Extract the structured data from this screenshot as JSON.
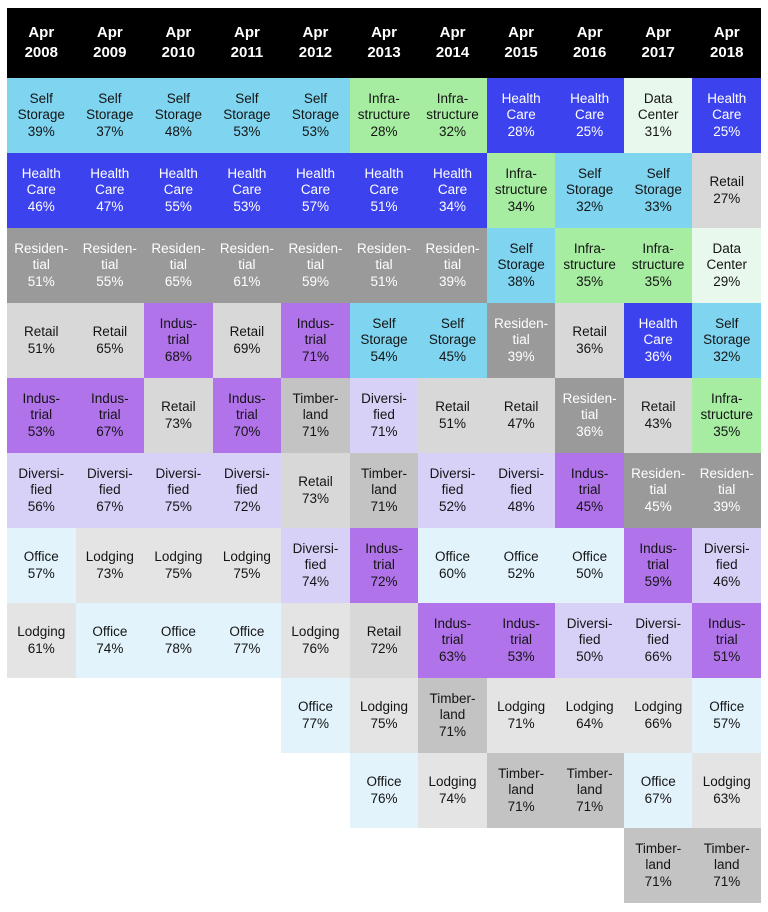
{
  "chart_data": {
    "type": "heatmap",
    "title": "",
    "description_visible": false,
    "legend_position": "none",
    "column_labels": [
      "Apr 2008",
      "Apr 2009",
      "Apr 2010",
      "Apr 2011",
      "Apr 2012",
      "Apr 2013",
      "Apr 2014",
      "Apr 2015",
      "Apr 2016",
      "Apr 2017",
      "Apr 2018"
    ],
    "columns": [
      {
        "month": "Apr",
        "year": "2008",
        "entries": [
          {
            "sector": "Self Storage",
            "value": "39%"
          },
          {
            "sector": "Health Care",
            "value": "46%"
          },
          {
            "sector": "Residential",
            "value": "51%"
          },
          {
            "sector": "Retail",
            "value": "51%"
          },
          {
            "sector": "Industrial",
            "value": "53%"
          },
          {
            "sector": "Diversified",
            "value": "56%"
          },
          {
            "sector": "Office",
            "value": "57%"
          },
          {
            "sector": "Lodging",
            "value": "61%"
          }
        ]
      },
      {
        "month": "Apr",
        "year": "2009",
        "entries": [
          {
            "sector": "Self Storage",
            "value": "37%"
          },
          {
            "sector": "Health Care",
            "value": "47%"
          },
          {
            "sector": "Residential",
            "value": "55%"
          },
          {
            "sector": "Retail",
            "value": "65%"
          },
          {
            "sector": "Industrial",
            "value": "67%"
          },
          {
            "sector": "Diversified",
            "value": "67%"
          },
          {
            "sector": "Lodging",
            "value": "73%"
          },
          {
            "sector": "Office",
            "value": "74%"
          }
        ]
      },
      {
        "month": "Apr",
        "year": "2010",
        "entries": [
          {
            "sector": "Self Storage",
            "value": "48%"
          },
          {
            "sector": "Health Care",
            "value": "55%"
          },
          {
            "sector": "Residential",
            "value": "65%"
          },
          {
            "sector": "Industrial",
            "value": "68%"
          },
          {
            "sector": "Retail",
            "value": "73%"
          },
          {
            "sector": "Diversified",
            "value": "75%"
          },
          {
            "sector": "Lodging",
            "value": "75%"
          },
          {
            "sector": "Office",
            "value": "78%"
          }
        ]
      },
      {
        "month": "Apr",
        "year": "2011",
        "entries": [
          {
            "sector": "Self Storage",
            "value": "53%"
          },
          {
            "sector": "Health Care",
            "value": "53%"
          },
          {
            "sector": "Residential",
            "value": "61%"
          },
          {
            "sector": "Retail",
            "value": "69%"
          },
          {
            "sector": "Industrial",
            "value": "70%"
          },
          {
            "sector": "Diversified",
            "value": "72%"
          },
          {
            "sector": "Lodging",
            "value": "75%"
          },
          {
            "sector": "Office",
            "value": "77%"
          }
        ]
      },
      {
        "month": "Apr",
        "year": "2012",
        "entries": [
          {
            "sector": "Self Storage",
            "value": "53%"
          },
          {
            "sector": "Health Care",
            "value": "57%"
          },
          {
            "sector": "Residential",
            "value": "59%"
          },
          {
            "sector": "Industrial",
            "value": "71%"
          },
          {
            "sector": "Timberland",
            "value": "71%"
          },
          {
            "sector": "Retail",
            "value": "73%"
          },
          {
            "sector": "Diversified",
            "value": "74%"
          },
          {
            "sector": "Lodging",
            "value": "76%"
          },
          {
            "sector": "Office",
            "value": "77%"
          }
        ]
      },
      {
        "month": "Apr",
        "year": "2013",
        "entries": [
          {
            "sector": "Infrastructure",
            "value": "28%"
          },
          {
            "sector": "Health Care",
            "value": "51%"
          },
          {
            "sector": "Residential",
            "value": "51%"
          },
          {
            "sector": "Self Storage",
            "value": "54%"
          },
          {
            "sector": "Diversified",
            "value": "71%"
          },
          {
            "sector": "Timberland",
            "value": "71%"
          },
          {
            "sector": "Industrial",
            "value": "72%"
          },
          {
            "sector": "Retail",
            "value": "72%"
          },
          {
            "sector": "Lodging",
            "value": "75%"
          },
          {
            "sector": "Office",
            "value": "76%"
          }
        ]
      },
      {
        "month": "Apr",
        "year": "2014",
        "entries": [
          {
            "sector": "Infrastructure",
            "value": "32%"
          },
          {
            "sector": "Health Care",
            "value": "34%"
          },
          {
            "sector": "Residential",
            "value": "39%"
          },
          {
            "sector": "Self Storage",
            "value": "45%"
          },
          {
            "sector": "Retail",
            "value": "51%"
          },
          {
            "sector": "Diversified",
            "value": "52%"
          },
          {
            "sector": "Office",
            "value": "60%"
          },
          {
            "sector": "Industrial",
            "value": "63%"
          },
          {
            "sector": "Timberland",
            "value": "71%"
          },
          {
            "sector": "Lodging",
            "value": "74%"
          }
        ]
      },
      {
        "month": "Apr",
        "year": "2015",
        "entries": [
          {
            "sector": "Health Care",
            "value": "28%"
          },
          {
            "sector": "Infrastructure",
            "value": "34%"
          },
          {
            "sector": "Self Storage",
            "value": "38%"
          },
          {
            "sector": "Residential",
            "value": "39%"
          },
          {
            "sector": "Retail",
            "value": "47%"
          },
          {
            "sector": "Diversified",
            "value": "48%"
          },
          {
            "sector": "Office",
            "value": "52%"
          },
          {
            "sector": "Industrial",
            "value": "53%"
          },
          {
            "sector": "Lodging",
            "value": "71%"
          },
          {
            "sector": "Timberland",
            "value": "71%"
          }
        ]
      },
      {
        "month": "Apr",
        "year": "2016",
        "entries": [
          {
            "sector": "Health Care",
            "value": "25%"
          },
          {
            "sector": "Self Storage",
            "value": "32%"
          },
          {
            "sector": "Infrastructure",
            "value": "35%"
          },
          {
            "sector": "Retail",
            "value": "36%"
          },
          {
            "sector": "Residential",
            "value": "36%"
          },
          {
            "sector": "Industrial",
            "value": "45%"
          },
          {
            "sector": "Office",
            "value": "50%"
          },
          {
            "sector": "Diversified",
            "value": "50%"
          },
          {
            "sector": "Lodging",
            "value": "64%"
          },
          {
            "sector": "Timberland",
            "value": "71%"
          }
        ]
      },
      {
        "month": "Apr",
        "year": "2017",
        "entries": [
          {
            "sector": "Data Center",
            "value": "31%"
          },
          {
            "sector": "Self Storage",
            "value": "33%"
          },
          {
            "sector": "Infrastructure",
            "value": "35%"
          },
          {
            "sector": "Health Care",
            "value": "36%"
          },
          {
            "sector": "Retail",
            "value": "43%"
          },
          {
            "sector": "Residential",
            "value": "45%"
          },
          {
            "sector": "Industrial",
            "value": "59%"
          },
          {
            "sector": "Diversified",
            "value": "66%"
          },
          {
            "sector": "Lodging",
            "value": "66%"
          },
          {
            "sector": "Office",
            "value": "67%"
          },
          {
            "sector": "Timberland",
            "value": "71%"
          }
        ]
      },
      {
        "month": "Apr",
        "year": "2018",
        "entries": [
          {
            "sector": "Health Care",
            "value": "25%"
          },
          {
            "sector": "Retail",
            "value": "27%"
          },
          {
            "sector": "Data Center",
            "value": "29%"
          },
          {
            "sector": "Self Storage",
            "value": "32%"
          },
          {
            "sector": "Infrastructure",
            "value": "35%"
          },
          {
            "sector": "Residential",
            "value": "39%"
          },
          {
            "sector": "Diversified",
            "value": "46%"
          },
          {
            "sector": "Industrial",
            "value": "51%"
          },
          {
            "sector": "Office",
            "value": "57%"
          },
          {
            "sector": "Lodging",
            "value": "63%"
          },
          {
            "sector": "Timberland",
            "value": "71%"
          }
        ]
      }
    ]
  },
  "sectors": {
    "Self Storage": {
      "display": "Self\nStorage",
      "bg": "#7fd4f0",
      "fg": "#141414"
    },
    "Health Care": {
      "display": "Health\nCare",
      "bg": "#3b42ee",
      "fg": "#ffffff"
    },
    "Residential": {
      "display": "Residen-\ntial",
      "bg": "#9a9a9a",
      "fg": "#ffffff"
    },
    "Retail": {
      "display": "Retail",
      "bg": "#d8d8d8",
      "fg": "#141414"
    },
    "Industrial": {
      "display": "Indus-\ntrial",
      "bg": "#b173e9",
      "fg": "#141414"
    },
    "Diversified": {
      "display": "Diversi-\nfied",
      "bg": "#d8d1f7",
      "fg": "#141414"
    },
    "Office": {
      "display": "Office",
      "bg": "#e2f3fc",
      "fg": "#141414"
    },
    "Lodging": {
      "display": "Lodging",
      "bg": "#e4e4e4",
      "fg": "#141414"
    },
    "Timberland": {
      "display": "Timber-\nland",
      "bg": "#c3c3c3",
      "fg": "#141414"
    },
    "Infrastructure": {
      "display": "Infra-\nstructure",
      "bg": "#a6eda1",
      "fg": "#141414"
    },
    "Data Center": {
      "display": "Data\nCenter",
      "bg": "#e9f8ec",
      "fg": "#141414"
    }
  },
  "header": {
    "bg": "#000000",
    "fg": "#ffffff"
  }
}
